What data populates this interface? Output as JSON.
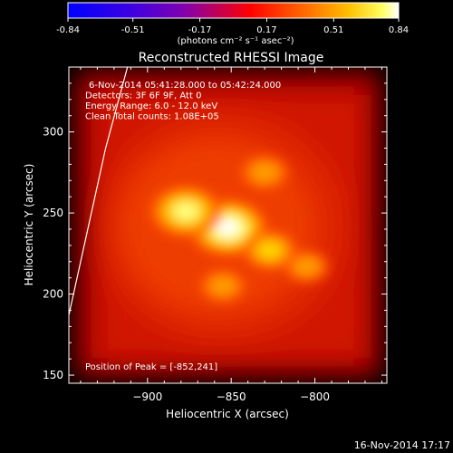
{
  "colorbar": {
    "ticks": [
      "-0.84",
      "-0.51",
      "-0.17",
      "0.17",
      "0.51",
      "0.84"
    ],
    "unit_label": "(photons cm⁻² s⁻¹ asec⁻²)"
  },
  "plot": {
    "title": "Reconstructed RHESSI Image",
    "info_lines": [
      "6-Nov-2014 05:41:28.000 to 05:42:24.000",
      "Detectors: 3F 6F 9F, Att 0",
      "Energy Range: 6.0 - 12.0 keV",
      "Clean    Total counts: 1.08E+05"
    ],
    "peak_label": "Position of Peak = [-852,241]",
    "xlabel": "Heliocentric X (arcsec)",
    "ylabel": "Heliocentric Y (arcsec)",
    "xticks": [
      "−900",
      "−850",
      "−800"
    ],
    "yticks": [
      "150",
      "200",
      "250",
      "300"
    ]
  },
  "footer": {
    "timestamp": "16-Nov-2014 17:17"
  },
  "chart_data": {
    "type": "heatmap",
    "title": "Reconstructed RHESSI Image",
    "xlabel": "Heliocentric X (arcsec)",
    "ylabel": "Heliocentric Y (arcsec)",
    "xlim": [
      -947,
      -757
    ],
    "ylim": [
      145,
      340
    ],
    "xtick_values": [
      -900,
      -850,
      -800
    ],
    "ytick_values": [
      150,
      200,
      250,
      300
    ],
    "colorbar": {
      "range": [
        -0.84,
        0.84
      ],
      "tick_values": [
        -0.84,
        -0.51,
        -0.17,
        0.17,
        0.51,
        0.84
      ],
      "colormap": [
        "#0000ff",
        "#8000b0",
        "#ff0000",
        "#ff8000",
        "#ffff00",
        "#ffffff"
      ]
    },
    "peak": {
      "x": -852,
      "y": 241
    },
    "sources": [
      {
        "x": -852,
        "y": 241,
        "amplitude": 0.84
      },
      {
        "x": -877,
        "y": 251,
        "amplitude": 0.72
      },
      {
        "x": -827,
        "y": 227,
        "amplitude": 0.45
      },
      {
        "x": -805,
        "y": 217,
        "amplitude": 0.3
      },
      {
        "x": -830,
        "y": 275,
        "amplitude": 0.35
      },
      {
        "x": -855,
        "y": 205,
        "amplitude": 0.32
      }
    ],
    "background_level": 0.17,
    "limb_curve": [
      {
        "x": -947,
        "y": 187
      },
      {
        "x": -925,
        "y": 290
      },
      {
        "x": -912,
        "y": 340
      }
    ]
  }
}
